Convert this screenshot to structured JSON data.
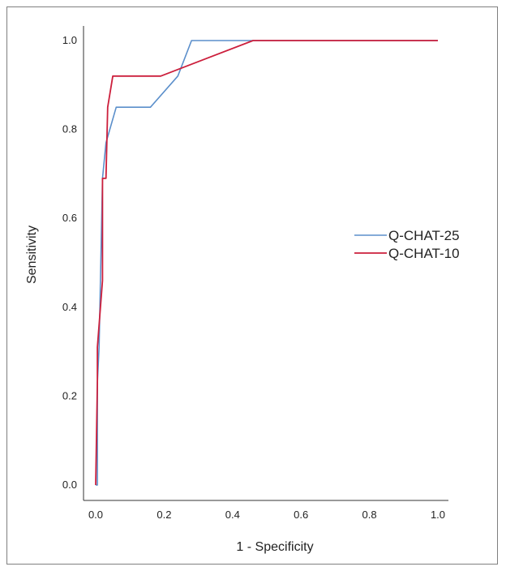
{
  "chart_data": {
    "type": "line",
    "xlabel": "1 - Specificity",
    "ylabel": "Sensitivity",
    "xlim": [
      0,
      1
    ],
    "ylim": [
      0,
      1
    ],
    "x_ticks": [
      "0.0",
      "0.2",
      "0.4",
      "0.6",
      "0.8",
      "1.0"
    ],
    "y_ticks": [
      "0.0",
      "0.2",
      "0.4",
      "0.6",
      "0.8",
      "1.0"
    ],
    "grid": false,
    "legend_position": "right",
    "series": [
      {
        "name": "Q-CHAT-25",
        "color": "#5b8fcb",
        "points": [
          [
            0.0,
            0.0
          ],
          [
            0.005,
            0.0
          ],
          [
            0.005,
            0.23
          ],
          [
            0.01,
            0.31
          ],
          [
            0.02,
            0.69
          ],
          [
            0.03,
            0.77
          ],
          [
            0.06,
            0.85
          ],
          [
            0.16,
            0.85
          ],
          [
            0.24,
            0.92
          ],
          [
            0.28,
            1.0
          ],
          [
            0.46,
            1.0
          ],
          [
            1.0,
            1.0
          ]
        ]
      },
      {
        "name": "Q-CHAT-10",
        "color": "#cc1f3c",
        "points": [
          [
            0.0,
            0.0
          ],
          [
            0.005,
            0.23
          ],
          [
            0.005,
            0.31
          ],
          [
            0.02,
            0.46
          ],
          [
            0.02,
            0.69
          ],
          [
            0.03,
            0.69
          ],
          [
            0.035,
            0.85
          ],
          [
            0.05,
            0.92
          ],
          [
            0.19,
            0.92
          ],
          [
            0.46,
            1.0
          ],
          [
            1.0,
            1.0
          ]
        ]
      }
    ]
  }
}
